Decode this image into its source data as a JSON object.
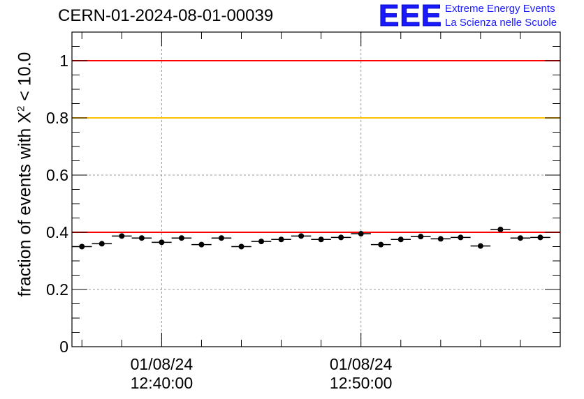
{
  "title": "CERN-01-2024-08-01-00039",
  "logo": {
    "mark": "EEE",
    "line1": "Extreme Energy Events",
    "line2": "La Scienza nelle Scuole"
  },
  "chart_data": {
    "type": "scatter",
    "title": "CERN-01-2024-08-01-00039",
    "ylabel_prefix": "fraction of events with X",
    "ylabel_sup": "2",
    "ylabel_suffix": " < 10.0",
    "xlabel": "",
    "ylim": [
      0,
      1.1
    ],
    "xlim": [
      "12:35:30",
      "13:00:00"
    ],
    "yticks": [
      0,
      0.2,
      0.4,
      0.6,
      0.8,
      1
    ],
    "ytick_labels": [
      "0",
      "0.2",
      "0.4",
      "0.6",
      "0.8",
      "1"
    ],
    "xticks": [
      {
        "time": "12:40:00",
        "label_date": "01/08/24",
        "label_time": "12:40:00"
      },
      {
        "time": "12:50:00",
        "label_date": "01/08/24",
        "label_time": "12:50:00"
      }
    ],
    "grid": true,
    "reference_lines": [
      {
        "y": 1.0,
        "color": "#ff0000"
      },
      {
        "y": 0.8,
        "color": "#ffc000"
      },
      {
        "y": 0.4,
        "color": "#ff0000"
      }
    ],
    "marker_color": "#000000",
    "bin_width_minutes": 1,
    "points": [
      {
        "x": "12:36:00",
        "y": 0.35
      },
      {
        "x": "12:37:00",
        "y": 0.36
      },
      {
        "x": "12:38:00",
        "y": 0.387
      },
      {
        "x": "12:39:00",
        "y": 0.38
      },
      {
        "x": "12:40:00",
        "y": 0.365
      },
      {
        "x": "12:41:00",
        "y": 0.38
      },
      {
        "x": "12:42:00",
        "y": 0.357
      },
      {
        "x": "12:43:00",
        "y": 0.38
      },
      {
        "x": "12:44:00",
        "y": 0.35
      },
      {
        "x": "12:45:00",
        "y": 0.368
      },
      {
        "x": "12:46:00",
        "y": 0.375
      },
      {
        "x": "12:47:00",
        "y": 0.387
      },
      {
        "x": "12:48:00",
        "y": 0.375
      },
      {
        "x": "12:49:00",
        "y": 0.382
      },
      {
        "x": "12:50:00",
        "y": 0.395
      },
      {
        "x": "12:51:00",
        "y": 0.357
      },
      {
        "x": "12:52:00",
        "y": 0.375
      },
      {
        "x": "12:53:00",
        "y": 0.385
      },
      {
        "x": "12:54:00",
        "y": 0.377
      },
      {
        "x": "12:55:00",
        "y": 0.382
      },
      {
        "x": "12:56:00",
        "y": 0.352
      },
      {
        "x": "12:57:00",
        "y": 0.41
      },
      {
        "x": "12:58:00",
        "y": 0.38
      },
      {
        "x": "12:59:00",
        "y": 0.382
      }
    ]
  }
}
